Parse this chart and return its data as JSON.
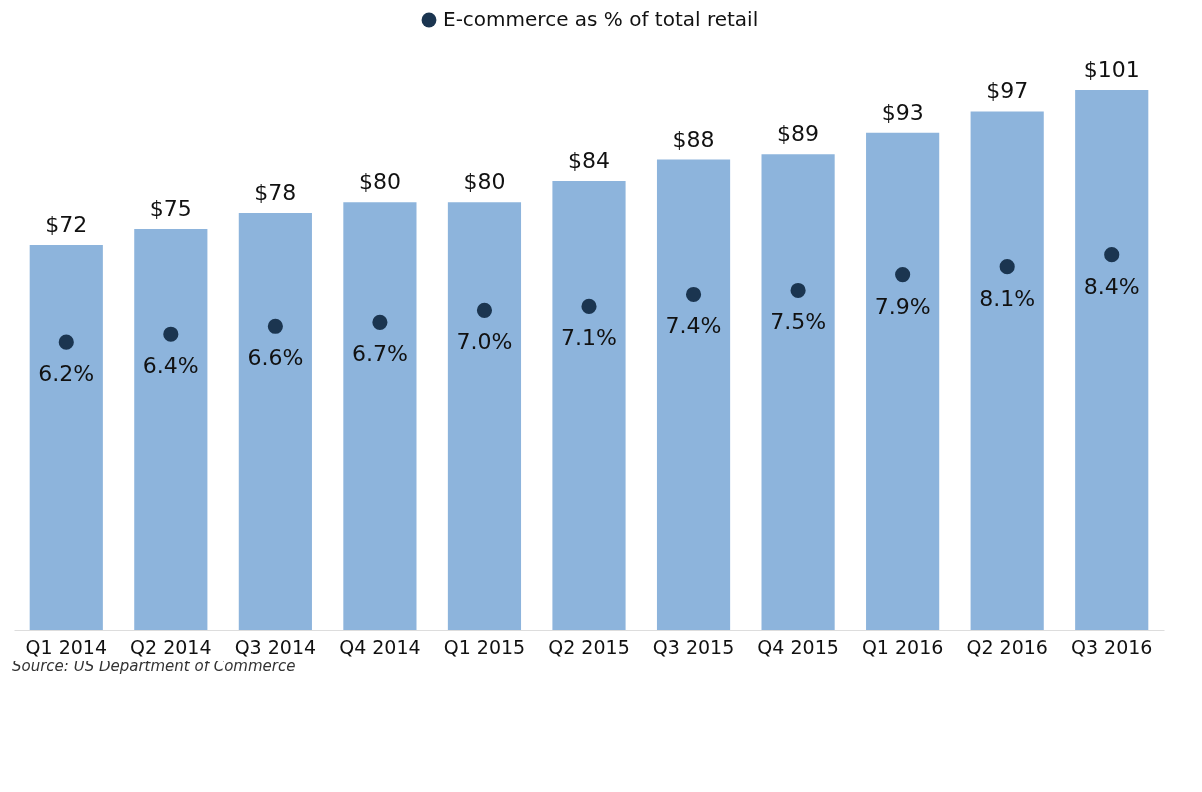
{
  "chart_data": {
    "type": "bar",
    "categories": [
      "Q1 2014",
      "Q2 2014",
      "Q3 2014",
      "Q4 2014",
      "Q1 2015",
      "Q2 2015",
      "Q3 2015",
      "Q4 2015",
      "Q1 2016",
      "Q2 2016",
      "Q3 2016"
    ],
    "series": [
      {
        "type": "bar",
        "color": "#8db4dc",
        "values": [
          72,
          75,
          78,
          80,
          80,
          84,
          88,
          89,
          93,
          97,
          101
        ],
        "value_labels": [
          "$72",
          "$75",
          "$78",
          "$80",
          "$80",
          "$84",
          "$88",
          "$89",
          "$93",
          "$97",
          "$101"
        ]
      },
      {
        "type": "scatter",
        "axis": "y2",
        "name": "E-commerce as % of total retail",
        "color": "#1b3550",
        "values": [
          6.2,
          6.4,
          6.6,
          6.7,
          7.0,
          7.1,
          7.4,
          7.5,
          7.9,
          8.1,
          8.4
        ],
        "value_labels": [
          "6.2%",
          "6.4%",
          "6.6%",
          "6.7%",
          "7.0%",
          "7.1%",
          "7.4%",
          "7.5%",
          "7.9%",
          "8.1%",
          "8.4%"
        ]
      }
    ],
    "tick_labels": "x",
    "grid": false,
    "legend": "top",
    "marker": "circle",
    "annotations": [
      "Source: US Department of Commerce"
    ]
  }
}
